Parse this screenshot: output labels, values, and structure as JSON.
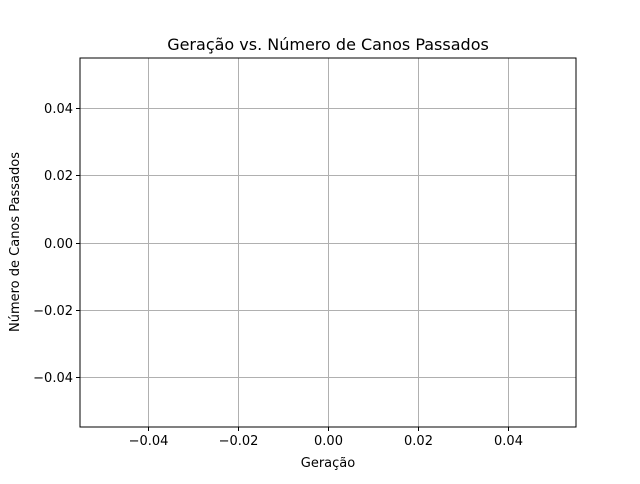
{
  "chart_data": {
    "type": "line",
    "title": "Geração vs. Número de Canos Passados",
    "xlabel": "Geração",
    "ylabel": "Número de Canos Passados",
    "series": [
      {
        "values": []
      }
    ],
    "xlim": [
      -0.055,
      0.055
    ],
    "ylim": [
      -0.055,
      0.055
    ],
    "xticks": [
      -0.04,
      -0.02,
      0.0,
      0.02,
      0.04
    ],
    "yticks": [
      -0.04,
      -0.02,
      0.0,
      0.02,
      0.04
    ],
    "xtick_labels": [
      "−0.04",
      "−0.02",
      "0.00",
      "0.02",
      "0.04"
    ],
    "ytick_labels": [
      "−0.04",
      "−0.02",
      "0.00",
      "0.02",
      "0.04"
    ],
    "grid": true,
    "colors": {
      "grid": "#b0b0b0",
      "axes": "#000000",
      "background": "#ffffff"
    }
  }
}
